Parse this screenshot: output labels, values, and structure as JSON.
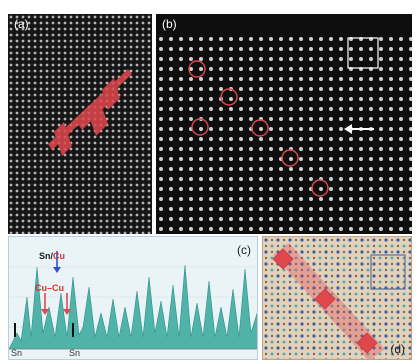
{
  "panels": {
    "a": {
      "label": "(a)"
    },
    "b": {
      "label": "(b)"
    },
    "c": {
      "label": "(c)",
      "peak_label_sn": "Sn",
      "peak_label_cu": "Cu",
      "peak_label_sep": "/",
      "cucu_label": "Cu–Cu",
      "sn_left": "Sn",
      "sn_right": "Sn"
    },
    "d": {
      "label": "(d)"
    }
  },
  "colors": {
    "highlight_red": "#e0474c",
    "profile_teal": "#4fb3a9",
    "arrow_blue": "#2c4fd6",
    "arrow_red": "#e0474c"
  }
}
